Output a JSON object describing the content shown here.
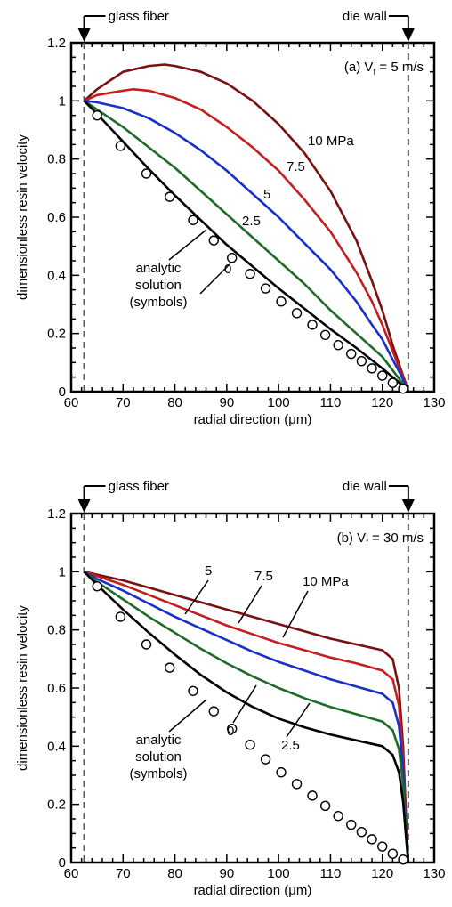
{
  "chart_data": [
    {
      "type": "line",
      "panel_label": "(a) V",
      "panel_label_sub": "f",
      "panel_label_tail": " = 5 m/s",
      "xlabel": "radial direction (μm)",
      "ylabel": "dimensionless resin velocity",
      "xlim": [
        60,
        130
      ],
      "ylim": [
        0,
        1.2
      ],
      "xticks": [
        "60",
        "70",
        "80",
        "90",
        "100",
        "110",
        "120",
        "130"
      ],
      "yticks": [
        "0",
        "0.2",
        "0.4",
        "0.6",
        "0.8",
        "1",
        "1.2"
      ],
      "boundaries": [
        {
          "label": "glass fiber",
          "x": 62.5
        },
        {
          "label": "die wall",
          "x": 125
        }
      ],
      "series": [
        {
          "name": "10 MPa",
          "color": "#7b1010",
          "x": [
            62.5,
            65,
            70,
            75,
            78,
            80,
            85,
            90,
            95,
            100,
            105,
            110,
            115,
            118,
            120,
            122,
            123.5,
            124.5,
            125
          ],
          "y": [
            1.0,
            1.04,
            1.1,
            1.12,
            1.125,
            1.12,
            1.1,
            1.06,
            1.0,
            0.92,
            0.82,
            0.69,
            0.52,
            0.38,
            0.28,
            0.16,
            0.08,
            0.03,
            0.0
          ]
        },
        {
          "name": "7.5",
          "color": "#c41e1e",
          "x": [
            62.5,
            65,
            70,
            72,
            75,
            80,
            85,
            90,
            95,
            100,
            105,
            110,
            115,
            118,
            120,
            122,
            123.5,
            124.5,
            125
          ],
          "y": [
            1.0,
            1.02,
            1.035,
            1.04,
            1.035,
            1.01,
            0.97,
            0.91,
            0.84,
            0.76,
            0.66,
            0.55,
            0.41,
            0.31,
            0.23,
            0.14,
            0.07,
            0.025,
            0.0
          ]
        },
        {
          "name": "5",
          "color": "#1a2fc8",
          "x": [
            62.5,
            65,
            70,
            75,
            80,
            85,
            90,
            95,
            100,
            105,
            110,
            115,
            118,
            120,
            122,
            123.5,
            125
          ],
          "y": [
            1.0,
            0.995,
            0.975,
            0.94,
            0.89,
            0.83,
            0.76,
            0.68,
            0.6,
            0.51,
            0.42,
            0.31,
            0.23,
            0.18,
            0.11,
            0.06,
            0.0
          ]
        },
        {
          "name": "2.5",
          "color": "#1f6b2a",
          "x": [
            62.5,
            65,
            70,
            75,
            80,
            85,
            90,
            95,
            100,
            105,
            110,
            115,
            120,
            123,
            125
          ],
          "y": [
            1.0,
            0.97,
            0.91,
            0.84,
            0.77,
            0.69,
            0.61,
            0.53,
            0.45,
            0.37,
            0.28,
            0.2,
            0.12,
            0.05,
            0.0
          ]
        },
        {
          "name": "0",
          "color": "#000000",
          "x": [
            62.5,
            65,
            70,
            75,
            80,
            85,
            90,
            95,
            100,
            105,
            110,
            115,
            120,
            123,
            125
          ],
          "y": [
            1.0,
            0.955,
            0.86,
            0.765,
            0.675,
            0.59,
            0.505,
            0.43,
            0.355,
            0.285,
            0.215,
            0.15,
            0.08,
            0.035,
            0.0
          ]
        }
      ],
      "analytic_solution": {
        "x": [
          65,
          69.5,
          74.5,
          79,
          83.5,
          87.5,
          91,
          94.5,
          97.5,
          100.5,
          103.5,
          106.5,
          109,
          111.5,
          114,
          116,
          118,
          120,
          122,
          124
        ],
        "y": [
          0.95,
          0.845,
          0.75,
          0.67,
          0.59,
          0.52,
          0.46,
          0.405,
          0.355,
          0.31,
          0.27,
          0.23,
          0.195,
          0.16,
          0.13,
          0.105,
          0.08,
          0.055,
          0.03,
          0.01
        ]
      },
      "annotations": [
        {
          "text": "10 MPa",
          "series": "10 MPa"
        },
        {
          "text": "7.5",
          "series": "7.5"
        },
        {
          "text": "5",
          "series": "5"
        },
        {
          "text": "2.5",
          "series": "2.5"
        },
        {
          "text": "0",
          "series": "0"
        }
      ],
      "analytic_label": [
        "analytic",
        "solution",
        "(symbols)"
      ],
      "grid": false
    },
    {
      "type": "line",
      "panel_label": "(b) V",
      "panel_label_sub": "f",
      "panel_label_tail": " = 30 m/s",
      "xlabel": "radial direction (μm)",
      "ylabel": "dimensionless resin velocity",
      "xlim": [
        60,
        130
      ],
      "ylim": [
        0,
        1.2
      ],
      "xticks": [
        "60",
        "70",
        "80",
        "90",
        "100",
        "110",
        "120",
        "130"
      ],
      "yticks": [
        "0",
        "0.2",
        "0.4",
        "0.6",
        "0.8",
        "1",
        "1.2"
      ],
      "boundaries": [
        {
          "label": "glass fiber",
          "x": 62.5
        },
        {
          "label": "die wall",
          "x": 125
        }
      ],
      "series": [
        {
          "name": "10 MPa",
          "color": "#7b1010",
          "x": [
            62.5,
            65,
            70,
            75,
            80,
            85,
            90,
            95,
            100,
            105,
            110,
            115,
            120,
            122,
            123.2,
            124,
            124.6,
            125
          ],
          "y": [
            1.0,
            0.99,
            0.97,
            0.945,
            0.92,
            0.895,
            0.87,
            0.845,
            0.82,
            0.795,
            0.77,
            0.75,
            0.73,
            0.7,
            0.6,
            0.4,
            0.15,
            0.0
          ]
        },
        {
          "name": "7.5",
          "color": "#c41e1e",
          "x": [
            62.5,
            65,
            70,
            75,
            80,
            85,
            90,
            95,
            100,
            105,
            110,
            115,
            120,
            122,
            123.2,
            124,
            124.6,
            125
          ],
          "y": [
            1.0,
            0.985,
            0.955,
            0.92,
            0.885,
            0.85,
            0.815,
            0.785,
            0.755,
            0.73,
            0.705,
            0.685,
            0.66,
            0.63,
            0.54,
            0.36,
            0.13,
            0.0
          ]
        },
        {
          "name": "5",
          "color": "#1a2fc8",
          "x": [
            62.5,
            65,
            70,
            75,
            80,
            85,
            90,
            95,
            100,
            105,
            110,
            115,
            120,
            122,
            123.2,
            124,
            124.6,
            125
          ],
          "y": [
            1.0,
            0.975,
            0.935,
            0.89,
            0.845,
            0.805,
            0.765,
            0.725,
            0.69,
            0.66,
            0.63,
            0.605,
            0.58,
            0.55,
            0.47,
            0.32,
            0.12,
            0.0
          ]
        },
        {
          "name": "2.5",
          "color": "#1f6b2a",
          "x": [
            62.5,
            65,
            70,
            75,
            80,
            85,
            90,
            95,
            100,
            105,
            110,
            115,
            120,
            122,
            123.2,
            124,
            124.6,
            125
          ],
          "y": [
            1.0,
            0.965,
            0.905,
            0.845,
            0.79,
            0.735,
            0.685,
            0.64,
            0.6,
            0.565,
            0.535,
            0.51,
            0.485,
            0.455,
            0.39,
            0.27,
            0.1,
            0.0
          ]
        },
        {
          "name": "0",
          "color": "#000000",
          "x": [
            62.5,
            65,
            70,
            75,
            80,
            85,
            90,
            95,
            100,
            105,
            110,
            115,
            120,
            122,
            123.2,
            124,
            124.6,
            125
          ],
          "y": [
            1.0,
            0.955,
            0.87,
            0.79,
            0.715,
            0.645,
            0.585,
            0.535,
            0.495,
            0.465,
            0.44,
            0.42,
            0.4,
            0.37,
            0.31,
            0.21,
            0.08,
            0.0
          ]
        }
      ],
      "analytic_solution": {
        "x": [
          65,
          69.5,
          74.5,
          79,
          83.5,
          87.5,
          91,
          94.5,
          97.5,
          100.5,
          103.5,
          106.5,
          109,
          111.5,
          114,
          116,
          118,
          120,
          122,
          124
        ],
        "y": [
          0.95,
          0.845,
          0.75,
          0.67,
          0.59,
          0.52,
          0.46,
          0.405,
          0.355,
          0.31,
          0.27,
          0.23,
          0.195,
          0.16,
          0.13,
          0.105,
          0.08,
          0.055,
          0.03,
          0.01
        ]
      },
      "annotations": [
        {
          "text": "10 MPa",
          "series": "10 MPa"
        },
        {
          "text": "7.5",
          "series": "7.5"
        },
        {
          "text": "5",
          "series": "5"
        },
        {
          "text": "2.5",
          "series": "2.5"
        },
        {
          "text": "0",
          "series": "0"
        }
      ],
      "analytic_label": [
        "analytic",
        "solution",
        "(symbols)"
      ],
      "grid": false
    }
  ]
}
